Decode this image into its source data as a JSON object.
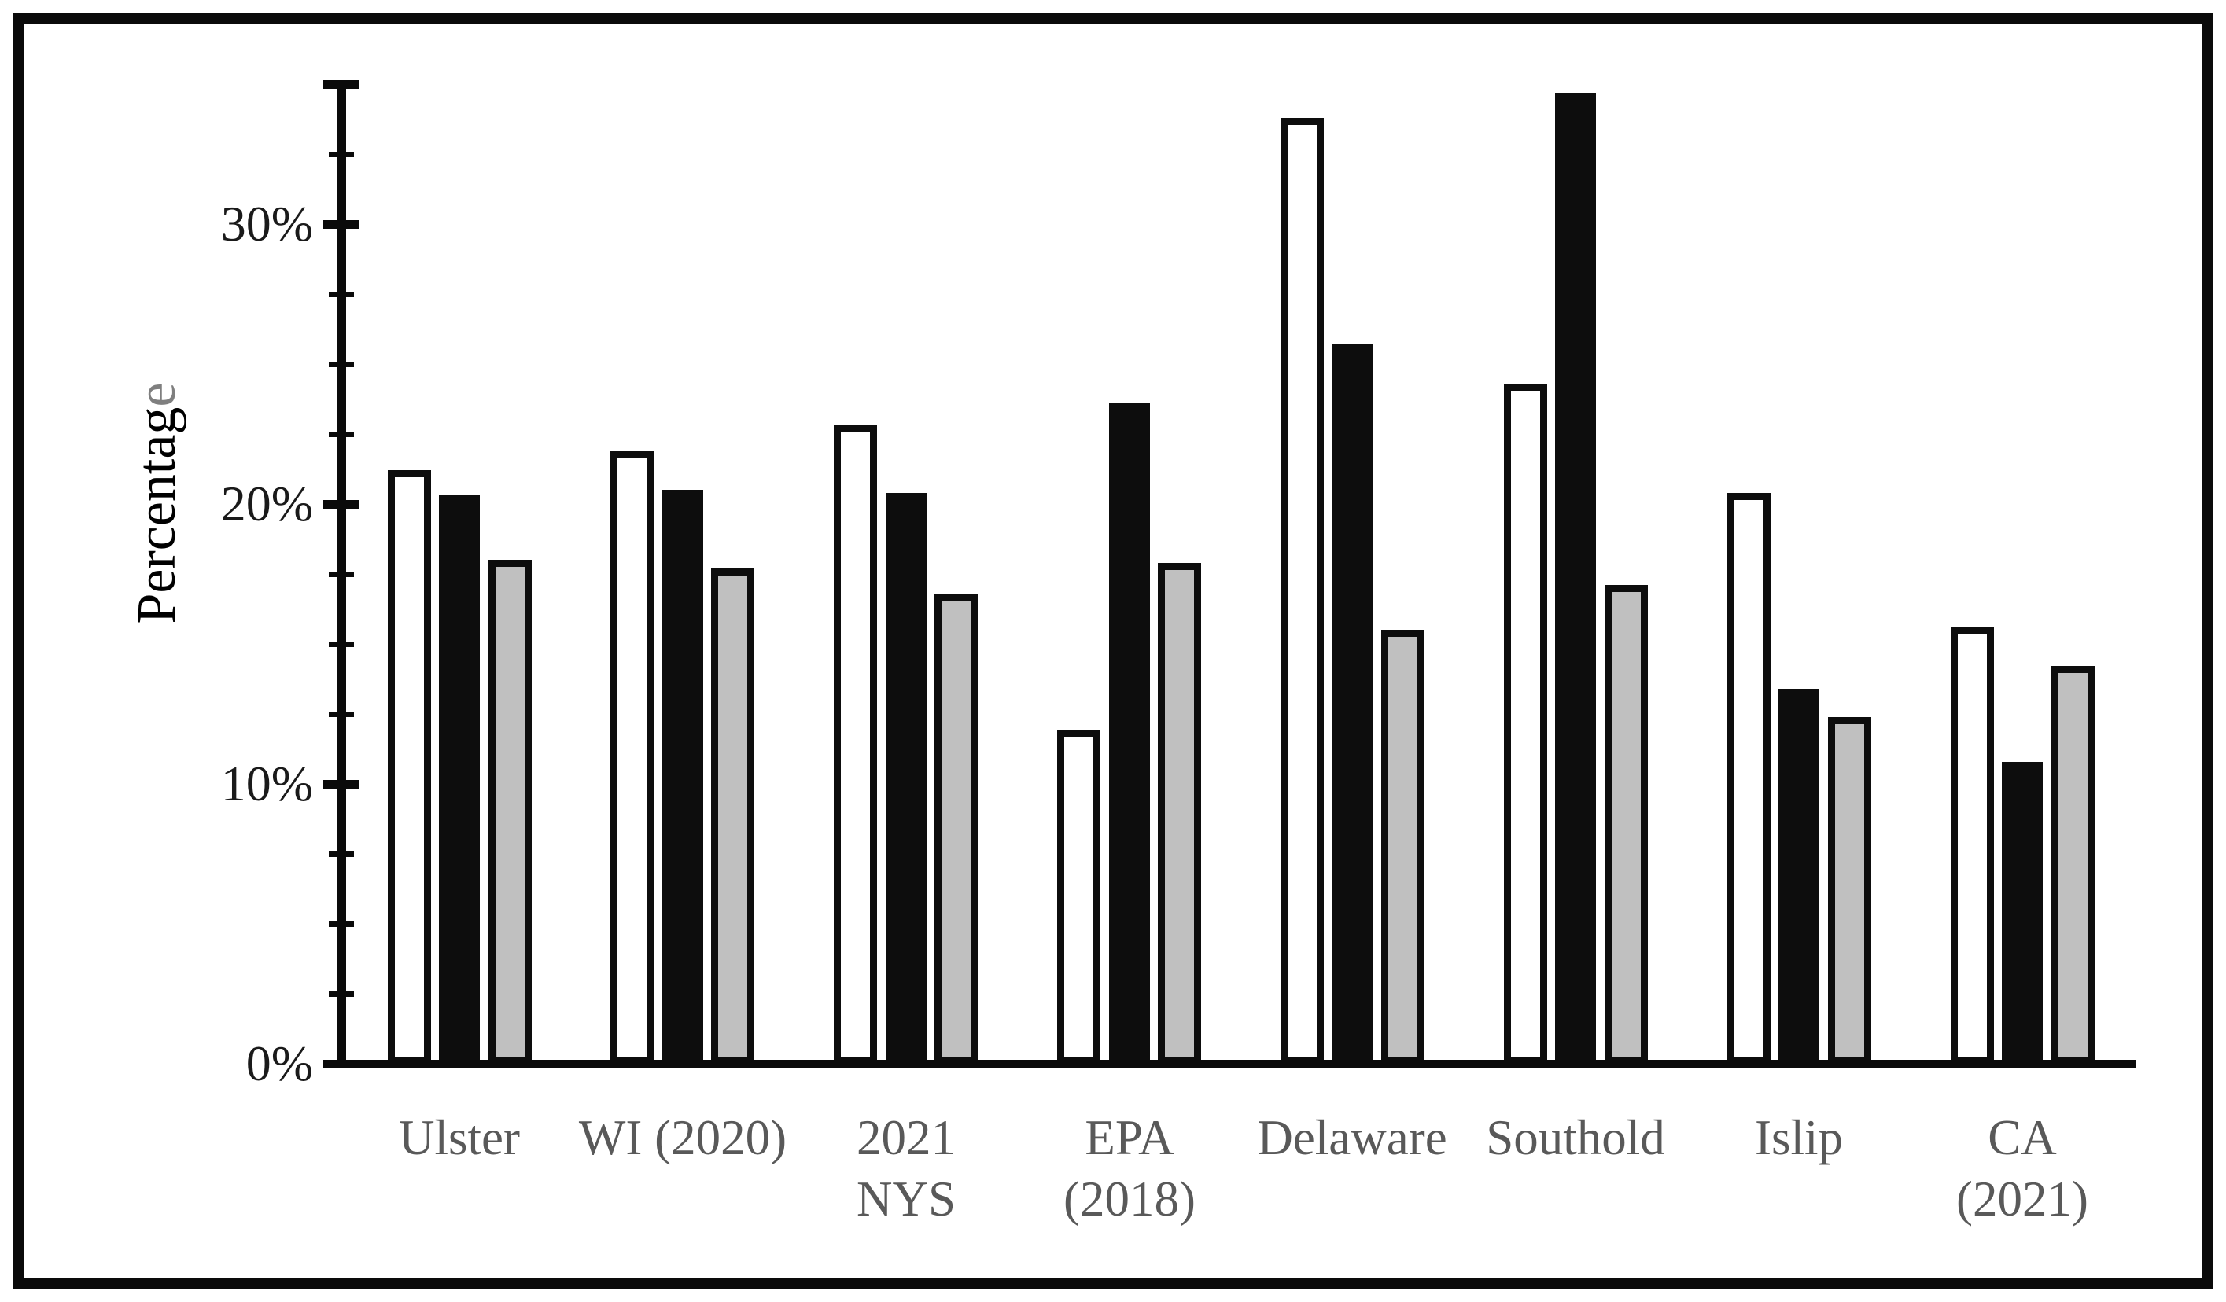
{
  "figure": {
    "background": "#ffffff",
    "border_color": "#0a0a0a"
  },
  "chart_data": {
    "type": "bar",
    "title": "",
    "xlabel": "",
    "ylabel": "Percentage",
    "ylim": [
      0,
      35
    ],
    "grid": false,
    "legend": "none",
    "y_ticks": [
      {
        "value": 0,
        "label": "0%"
      },
      {
        "value": 10,
        "label": "10%"
      },
      {
        "value": 20,
        "label": "20%"
      },
      {
        "value": 30,
        "label": "30%"
      }
    ],
    "minor_tick_step": 2.5,
    "axis_end_tick_value": 35,
    "categories": [
      "Ulster",
      "WI (2020)",
      "2021 NYS",
      "EPA (2018)",
      "Delaware",
      "Southold",
      "Islip",
      "CA (2021)"
    ],
    "category_label_lines": [
      [
        "Ulster"
      ],
      [
        "WI (2020)"
      ],
      [
        "2021",
        "NYS"
      ],
      [
        "EPA",
        "(2018)"
      ],
      [
        "Delaware"
      ],
      [
        "Southold"
      ],
      [
        "Islip"
      ],
      [
        "CA",
        "(2021)"
      ]
    ],
    "series": [
      {
        "name": "white-outlined-bar",
        "fill": "#ffffff",
        "outline": "#0d0d0d",
        "values": [
          21.2,
          21.9,
          22.8,
          11.9,
          33.8,
          24.3,
          20.4,
          15.6
        ]
      },
      {
        "name": "black-solid-bar",
        "fill": "#0d0d0d",
        "outline": "#0d0d0d",
        "values": [
          20.3,
          20.5,
          20.4,
          23.6,
          25.7,
          34.7,
          13.4,
          10.8
        ]
      },
      {
        "name": "gray-shaded-bar",
        "fill": "#c0c0c0",
        "outline": "#0d0d0d",
        "values": [
          18.0,
          17.7,
          16.8,
          17.9,
          15.5,
          17.1,
          12.4,
          14.2
        ]
      }
    ],
    "colors": {
      "axis": "#0a0a0a",
      "tick_label": "#1a1a1a",
      "category_label": "#595959",
      "ylabel_main": "#000000",
      "ylabel_last_letter": "#7f7f7f"
    }
  }
}
